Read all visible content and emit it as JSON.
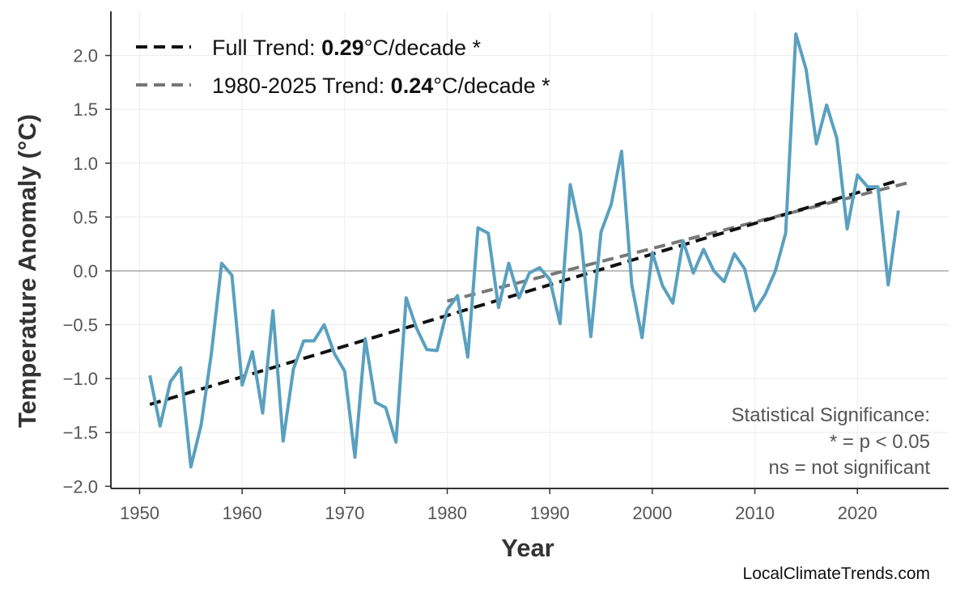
{
  "chart_data": {
    "type": "line",
    "xlabel": "Year",
    "ylabel": "Temperature Anomaly (°C)",
    "xlim": [
      1947.2,
      2028.9
    ],
    "ylim": [
      -2.02,
      2.41
    ],
    "xticks": [
      1950,
      1960,
      1970,
      1980,
      1990,
      2000,
      2010,
      2020
    ],
    "yticks": [
      -2.0,
      -1.5,
      -1.0,
      -0.5,
      0.0,
      0.5,
      1.0,
      1.5,
      2.0
    ],
    "ytick_labels": [
      "−2.0",
      "−1.5",
      "−1.0",
      "−0.5",
      "0.0",
      "0.5",
      "1.0",
      "1.5",
      "2.0"
    ],
    "grid": true,
    "zero_line": true,
    "series_color": "#5aa0bf",
    "x": [
      1951,
      1952,
      1953,
      1954,
      1955,
      1956,
      1957,
      1958,
      1959,
      1960,
      1961,
      1962,
      1963,
      1964,
      1965,
      1966,
      1967,
      1968,
      1969,
      1970,
      1971,
      1972,
      1973,
      1974,
      1975,
      1976,
      1977,
      1978,
      1979,
      1980,
      1981,
      1982,
      1983,
      1984,
      1985,
      1986,
      1987,
      1988,
      1989,
      1990,
      1991,
      1992,
      1993,
      1994,
      1995,
      1996,
      1997,
      1998,
      1999,
      2000,
      2001,
      2002,
      2003,
      2004,
      2005,
      2006,
      2007,
      2008,
      2009,
      2010,
      2011,
      2012,
      2013,
      2014,
      2015,
      2016,
      2017,
      2018,
      2019,
      2020,
      2021,
      2022,
      2023,
      2024
    ],
    "y": [
      -0.97,
      -1.44,
      -1.03,
      -0.9,
      -1.82,
      -1.43,
      -0.77,
      0.07,
      -0.04,
      -1.06,
      -0.75,
      -1.32,
      -0.37,
      -1.58,
      -0.91,
      -0.65,
      -0.65,
      -0.5,
      -0.77,
      -0.93,
      -1.73,
      -0.63,
      -1.22,
      -1.27,
      -1.59,
      -0.25,
      -0.53,
      -0.73,
      -0.74,
      -0.36,
      -0.23,
      -0.8,
      0.4,
      0.35,
      -0.34,
      0.07,
      -0.25,
      -0.02,
      0.03,
      -0.08,
      -0.49,
      0.8,
      0.35,
      -0.61,
      0.36,
      0.62,
      1.11,
      -0.13,
      -0.62,
      0.17,
      -0.14,
      -0.3,
      0.28,
      -0.02,
      0.2,
      0.0,
      -0.1,
      0.16,
      0.02,
      -0.37,
      -0.22,
      0.0,
      0.35,
      2.2,
      1.87,
      1.18,
      1.54,
      1.23,
      0.39,
      0.89,
      0.78,
      0.78,
      -0.13,
      0.56
    ],
    "trends": [
      {
        "name": "Full Trend",
        "prefix": "Full Trend: ",
        "value": "0.29",
        "suffix": "°C/decade *",
        "x": [
          1951,
          2024
        ],
        "y": [
          -1.24,
          0.84
        ],
        "color": "#111111"
      },
      {
        "name": "1980-2025 Trend",
        "prefix": "1980-2025 Trend: ",
        "value": "0.24",
        "suffix": "°C/decade *",
        "x": [
          1980,
          2025
        ],
        "y": [
          -0.28,
          0.82
        ],
        "color": "#777777"
      }
    ],
    "legend_position": "top-left",
    "annotation": [
      "Statistical Significance:",
      "* = p < 0.05",
      "ns = not significant"
    ]
  },
  "watermark": "LocalClimateTrends.com"
}
